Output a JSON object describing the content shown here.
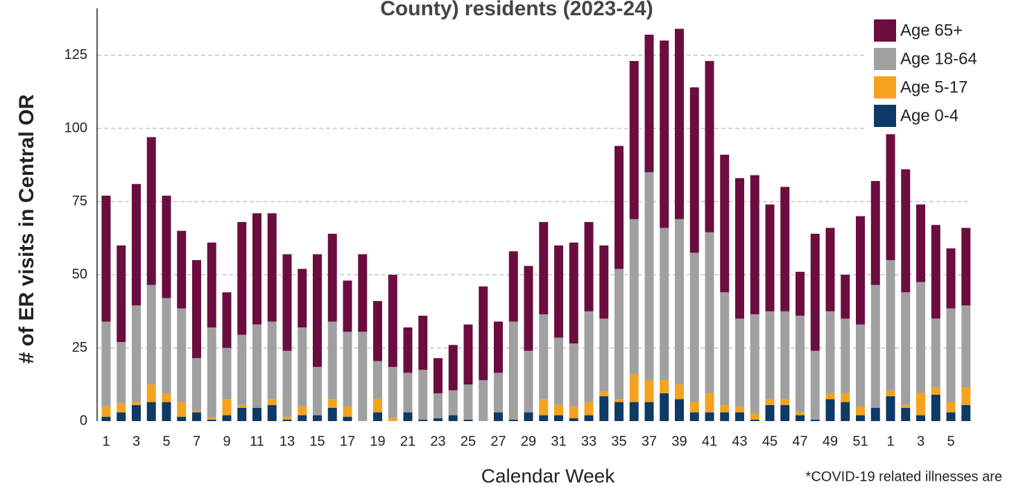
{
  "chart_data": {
    "type": "stacked_bar",
    "title": "County) residents (2023-24)",
    "x_label": "Calendar Week",
    "y_label": "# of ER visits  in Central OR",
    "note": "*COVID-19 related illnesses are",
    "categories": [
      1,
      null,
      3,
      null,
      5,
      null,
      7,
      null,
      9,
      null,
      11,
      null,
      13,
      null,
      15,
      null,
      17,
      null,
      19,
      null,
      21,
      null,
      23,
      null,
      25,
      null,
      27,
      null,
      29,
      null,
      31,
      null,
      33,
      null,
      35,
      null,
      37,
      null,
      39,
      null,
      41,
      null,
      43,
      null,
      45,
      null,
      47,
      null,
      49,
      null,
      51,
      null,
      1,
      null,
      3,
      null,
      5,
      null
    ],
    "series": [
      {
        "name": "Age 0-4",
        "color": "#0d3a66",
        "values": [
          1.5,
          3,
          5.5,
          6.5,
          6.5,
          1.5,
          3,
          0.5,
          2,
          4.5,
          4.5,
          5.5,
          0.5,
          2,
          2,
          4.5,
          1.5,
          0,
          3,
          0,
          3,
          0.5,
          1,
          2,
          0.5,
          0,
          3,
          0.5,
          3,
          2,
          2,
          1,
          2,
          8.5,
          6.5,
          6.5,
          6.5,
          9.5,
          7.5,
          3,
          3,
          3,
          3,
          0.5,
          5.5,
          5.5,
          2,
          0.5,
          7.5,
          6.5,
          2,
          4.5,
          8.5,
          4.5,
          2,
          9,
          3,
          5.5
        ]
      },
      {
        "name": "Age 5-17",
        "color": "#f5a31e",
        "values": [
          3.5,
          3,
          1,
          6,
          3,
          5,
          0.5,
          0.5,
          5.5,
          1,
          0,
          2,
          1,
          3,
          0,
          3,
          3.5,
          0,
          4.5,
          1,
          0,
          0,
          0,
          0,
          0,
          0,
          0,
          0,
          0,
          5.5,
          3.5,
          4,
          4.5,
          1.5,
          1,
          9.5,
          7.5,
          4.5,
          5,
          3.5,
          6.5,
          2.5,
          2,
          2,
          2,
          2,
          1,
          0,
          2,
          3,
          3,
          0,
          2,
          1,
          7.5,
          2.5,
          3.5,
          6
        ]
      },
      {
        "name": "Age 18-64",
        "color": "#a0a0a0",
        "values": [
          29,
          21,
          33,
          34,
          32.5,
          32,
          18,
          31,
          17.5,
          24,
          28.5,
          26.5,
          22.5,
          27,
          16.5,
          26.5,
          25.5,
          30.5,
          13,
          17.5,
          13.5,
          17,
          8.5,
          8.5,
          12,
          14,
          13.5,
          33.5,
          21,
          29,
          23,
          21.5,
          31,
          25,
          44.5,
          53,
          71,
          52,
          56.5,
          51,
          55,
          38.5,
          30,
          34,
          30,
          30,
          33,
          23.5,
          28,
          25.5,
          28,
          42,
          44.5,
          38.5,
          38,
          23.5,
          32,
          28
        ]
      },
      {
        "name": "Age 65+",
        "color": "#6b0d3f",
        "values": [
          43,
          33,
          41.5,
          50.5,
          35,
          26.5,
          33.5,
          29,
          19,
          38.5,
          38,
          37,
          33,
          20,
          38.5,
          30,
          17.5,
          26.5,
          20.5,
          31.5,
          15.5,
          18.5,
          12,
          15.5,
          20.5,
          32,
          17.5,
          24,
          29,
          31.5,
          31.5,
          34.5,
          30.5,
          25,
          42,
          54,
          47,
          64,
          65,
          56.5,
          58.5,
          47,
          48,
          47.5,
          36.5,
          42.5,
          15,
          40,
          28.5,
          15,
          37,
          35.5,
          43,
          42,
          26.5,
          32,
          20.5,
          26.5
        ]
      }
    ],
    "ylim": [
      0,
      141
    ],
    "yticks": [
      0,
      25,
      50,
      75,
      100,
      125
    ],
    "grid": true,
    "legend": "top-right"
  }
}
